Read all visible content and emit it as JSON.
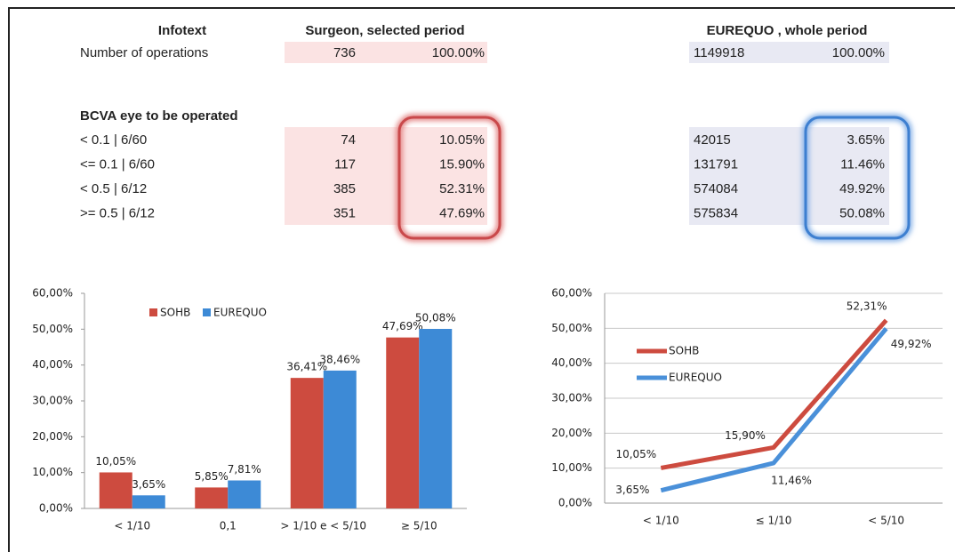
{
  "table": {
    "header": [
      "Infotext",
      "Surgeon, selected period",
      "EUREQUO , whole period"
    ],
    "rows": [
      [
        "Number of operations",
        "736",
        "100.00%",
        "1149918",
        "100.00%"
      ]
    ],
    "section": "BCVA eye to be operated",
    "section_rows": [
      [
        "< 0.1 | 6/60",
        "74",
        "10.05%",
        "42015",
        "3.65%"
      ],
      [
        "<= 0.1 | 6/60",
        "117",
        "15.90%",
        "131791",
        "11.46%"
      ],
      [
        "< 0.5 | 6/12",
        "385",
        "52.31%",
        "574084",
        "49.92%"
      ],
      [
        ">= 0.5 | 6/12",
        "351",
        "47.69%",
        "575834",
        "50.08%"
      ]
    ]
  },
  "chart_data": [
    {
      "type": "bar",
      "categories": [
        "< 1/10",
        "0,1",
        "> 1/10 e < 5/10",
        "≥ 5/10"
      ],
      "series": [
        {
          "name": "SOHB",
          "color": "#cd4b3f",
          "values": [
            10.05,
            5.85,
            36.41,
            47.69
          ],
          "value_labels": [
            "10,05%",
            "5,85%",
            "36,41%",
            "47,69%"
          ]
        },
        {
          "name": "EUREQUO",
          "color": "#3d8ad6",
          "values": [
            3.65,
            7.81,
            38.46,
            50.08
          ],
          "value_labels": [
            "3,65%",
            "7,81%",
            "38,46%",
            "50,08%"
          ]
        }
      ],
      "ylim": [
        0,
        60
      ],
      "yticks": [
        {
          "value": 0,
          "label": "0,00%"
        },
        {
          "value": 10,
          "label": "10,00%"
        },
        {
          "value": 20,
          "label": "20,00%"
        },
        {
          "value": 30,
          "label": "30,00%"
        },
        {
          "value": 40,
          "label": "40,00%"
        },
        {
          "value": 50,
          "label": "50,00%"
        },
        {
          "value": 60,
          "label": "60,00%"
        }
      ],
      "grid": false,
      "legend": "top-left"
    },
    {
      "type": "line",
      "categories": [
        "< 1/10",
        "≤ 1/10",
        "< 5/10"
      ],
      "series": [
        {
          "name": "SOHB",
          "color": "#cd4b3f",
          "values": [
            10.05,
            15.9,
            52.31
          ],
          "value_labels": [
            "10,05%",
            "15,90%",
            "52,31%"
          ]
        },
        {
          "name": "EUREQUO",
          "color": "#4a90d9",
          "values": [
            3.65,
            11.46,
            49.92
          ],
          "value_labels": [
            "3,65%",
            "11,46%",
            "49,92%"
          ]
        }
      ],
      "ylim": [
        0,
        60
      ],
      "yticks": [
        {
          "value": 0,
          "label": "0,00%"
        },
        {
          "value": 10,
          "label": "10,00%"
        },
        {
          "value": 20,
          "label": "20,00%"
        },
        {
          "value": 30,
          "label": "30,00%"
        },
        {
          "value": 40,
          "label": "40,00%"
        },
        {
          "value": 50,
          "label": "50,00%"
        },
        {
          "value": 60,
          "label": "60,00%"
        }
      ],
      "grid": true,
      "legend": "left"
    }
  ]
}
